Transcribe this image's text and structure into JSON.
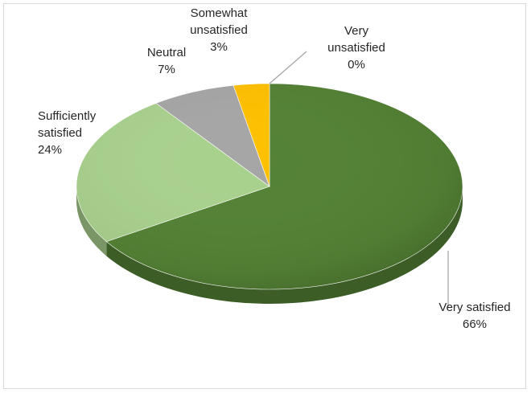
{
  "chart_data": {
    "type": "pie",
    "title": "",
    "legend": "none",
    "style": "3d-tilted",
    "slices": [
      {
        "label_lines": [
          "Very satisfied"
        ],
        "value": 66,
        "value_label": "66%",
        "color": "#548235"
      },
      {
        "label_lines": [
          "Sufficiently",
          "satisfied"
        ],
        "value": 24,
        "value_label": "24%",
        "color": "#a9d18e"
      },
      {
        "label_lines": [
          "Neutral"
        ],
        "value": 7,
        "value_label": "7%",
        "color": "#a6a6a6"
      },
      {
        "label_lines": [
          "Somewhat",
          "unsatisfied"
        ],
        "value": 3,
        "value_label": "3%",
        "color": "#ffc000"
      },
      {
        "label_lines": [
          "Very",
          "unsatisfied"
        ],
        "value": 0,
        "value_label": "0%",
        "color": "#4472c4"
      }
    ]
  }
}
